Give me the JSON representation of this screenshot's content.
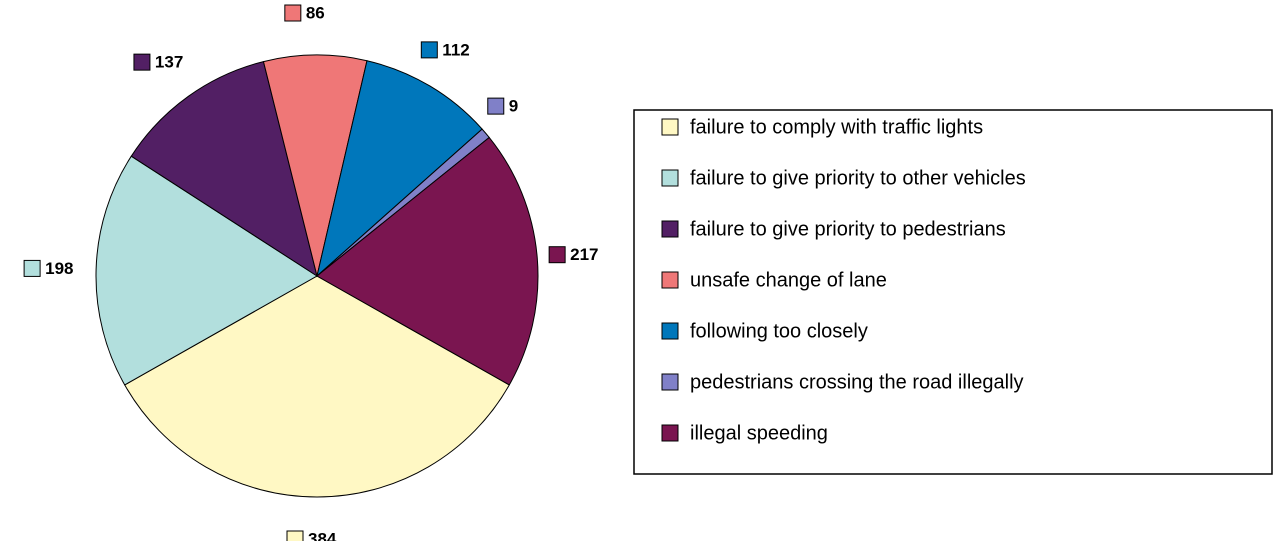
{
  "chart_data": {
    "type": "pie",
    "categories": [
      "failure to comply with traffic lights",
      "failure to give priority to other vehicles",
      "failure to give priority to pedestrians",
      "unsafe change of lane",
      "following too closely",
      "pedestrians crossing the road illegally",
      "illegal speeding"
    ],
    "values": [
      384,
      198,
      137,
      86,
      112,
      9,
      217
    ],
    "colors": [
      "#fff8c4",
      "#b2dfdd",
      "#521f64",
      "#ef7777",
      "#0077bb",
      "#8080c8",
      "#7a1550"
    ]
  }
}
